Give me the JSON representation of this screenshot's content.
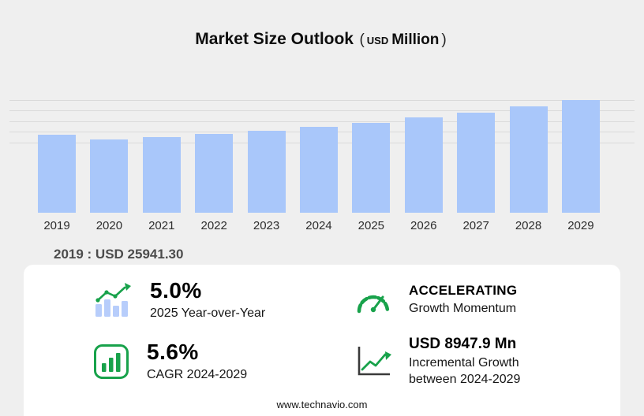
{
  "title": {
    "main": "Market Size Outlook",
    "open_paren": "(",
    "currency": "USD",
    "unit": "Million",
    "close_paren": ")"
  },
  "chart_data": {
    "type": "bar",
    "title": "Market Size Outlook (USD Million)",
    "categories": [
      "2019",
      "2020",
      "2021",
      "2022",
      "2023",
      "2024",
      "2025",
      "2026",
      "2027",
      "2028",
      "2029"
    ],
    "values": [
      25941.3,
      24350,
      25300,
      26350,
      27300,
      28572.9,
      30001.5,
      31650,
      33400,
      35350,
      37520.8
    ],
    "xlabel": "",
    "ylabel": "USD Million",
    "ylim": [
      0,
      38000
    ],
    "grid": true,
    "legend": false,
    "bar_color": "#a9c7fa",
    "grid_color": "#dadada"
  },
  "annotation": {
    "text": "2019 : USD 25941.30"
  },
  "stats": {
    "yoy": {
      "icon": "yoy-bar-chart-icon",
      "value": "5.0%",
      "label": "2025 Year-over-Year"
    },
    "momentum": {
      "icon": "speedometer-icon",
      "value": "ACCELERATING",
      "label": "Growth Momentum"
    },
    "cagr": {
      "icon": "cagr-chart-icon",
      "value": "5.6%",
      "label": "CAGR 2024-2029"
    },
    "incremental": {
      "icon": "incremental-growth-icon",
      "value": "USD 8947.9 Mn",
      "label": "Incremental Growth between 2024-2029"
    }
  },
  "footer": {
    "website": "www.technavio.com"
  },
  "colors": {
    "background": "#efefef",
    "panel": "#ffffff",
    "bar": "#a9c7fa",
    "accent_green": "#18a24b",
    "gridline": "#dadada"
  }
}
